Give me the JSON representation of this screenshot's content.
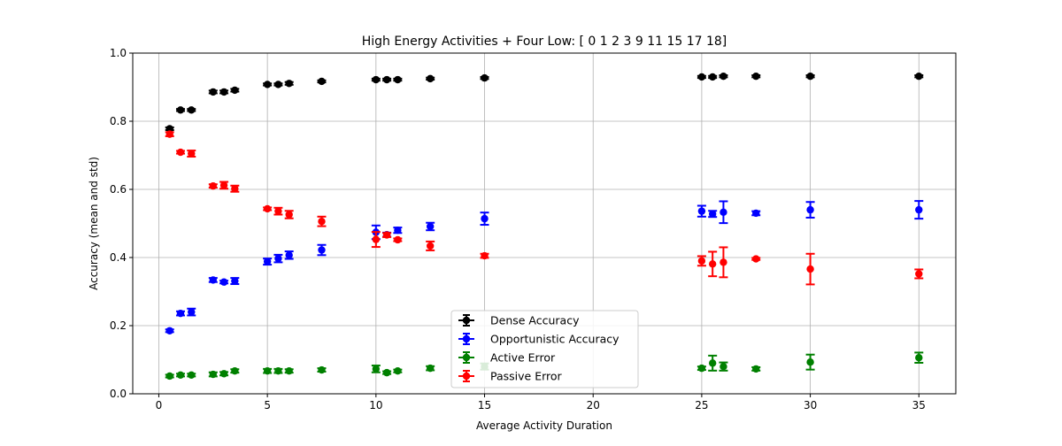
{
  "chart_data": {
    "type": "scatter",
    "title": "High Energy Activities + Four Low: [ 0  1  2  3  9 11 15 17 18]",
    "xlabel": "Average Activity Duration",
    "ylabel": "Accuracy (mean and std)",
    "xlim": [
      -1.2,
      36.7
    ],
    "ylim": [
      0.0,
      1.0
    ],
    "xticks": [
      0,
      5,
      10,
      15,
      20,
      25,
      30,
      35
    ],
    "yticks": [
      0.0,
      0.2,
      0.4,
      0.6,
      0.8,
      1.0
    ],
    "xtick_labels": [
      "0",
      "5",
      "10",
      "15",
      "20",
      "25",
      "30",
      "35"
    ],
    "ytick_labels": [
      "0.0",
      "0.2",
      "0.4",
      "0.6",
      "0.8",
      "1.0"
    ],
    "grid": true,
    "legend_position": "lower-center",
    "error_bars": true,
    "x": [
      0.5,
      1.0,
      1.5,
      2.5,
      3.0,
      3.5,
      5.0,
      5.5,
      6.0,
      7.5,
      10.0,
      10.5,
      11.0,
      12.5,
      15.0,
      25.0,
      25.5,
      26.0,
      27.5,
      30.0,
      35.0
    ],
    "series": [
      {
        "name": "Dense Accuracy",
        "color": "#000000",
        "values": [
          0.778,
          0.833,
          0.833,
          0.886,
          0.886,
          0.891,
          0.908,
          0.908,
          0.911,
          0.917,
          0.922,
          0.922,
          0.922,
          0.925,
          0.927,
          0.93,
          0.93,
          0.932,
          0.932,
          0.932,
          0.932
        ],
        "errors": [
          0.004,
          0.003,
          0.003,
          0.004,
          0.004,
          0.004,
          0.003,
          0.003,
          0.004,
          0.003,
          0.003,
          0.003,
          0.003,
          0.003,
          0.003,
          0.003,
          0.003,
          0.003,
          0.003,
          0.003,
          0.003
        ]
      },
      {
        "name": "Opportunistic Accuracy",
        "color": "#0000ff",
        "values": [
          0.185,
          0.236,
          0.24,
          0.334,
          0.328,
          0.331,
          0.388,
          0.397,
          0.407,
          0.422,
          0.474,
          0.467,
          0.48,
          0.491,
          0.514,
          0.536,
          0.528,
          0.533,
          0.53,
          0.54,
          0.54
        ],
        "errors": [
          0.004,
          0.006,
          0.01,
          0.006,
          0.004,
          0.009,
          0.009,
          0.011,
          0.011,
          0.015,
          0.02,
          0.006,
          0.008,
          0.011,
          0.018,
          0.016,
          0.009,
          0.032,
          0.006,
          0.023,
          0.026
        ]
      },
      {
        "name": "Active Error",
        "color": "#008000",
        "values": [
          0.052,
          0.055,
          0.055,
          0.057,
          0.059,
          0.067,
          0.067,
          0.067,
          0.067,
          0.07,
          0.073,
          0.062,
          0.067,
          0.075,
          0.08,
          0.075,
          0.09,
          0.08,
          0.073,
          0.093,
          0.106
        ],
        "errors": [
          0.004,
          0.004,
          0.004,
          0.006,
          0.005,
          0.005,
          0.006,
          0.006,
          0.005,
          0.005,
          0.01,
          0.004,
          0.004,
          0.006,
          0.009,
          0.005,
          0.022,
          0.012,
          0.005,
          0.022,
          0.015
        ]
      },
      {
        "name": "Passive Error",
        "color": "#ff0000",
        "values": [
          0.762,
          0.709,
          0.705,
          0.61,
          0.612,
          0.602,
          0.543,
          0.536,
          0.526,
          0.506,
          0.453,
          0.466,
          0.452,
          0.434,
          0.405,
          0.39,
          0.381,
          0.386,
          0.396,
          0.366,
          0.352
        ],
        "errors": [
          0.006,
          0.004,
          0.009,
          0.005,
          0.01,
          0.009,
          0.004,
          0.01,
          0.011,
          0.014,
          0.022,
          0.006,
          0.004,
          0.013,
          0.006,
          0.014,
          0.036,
          0.044,
          0.003,
          0.045,
          0.013
        ]
      }
    ]
  }
}
